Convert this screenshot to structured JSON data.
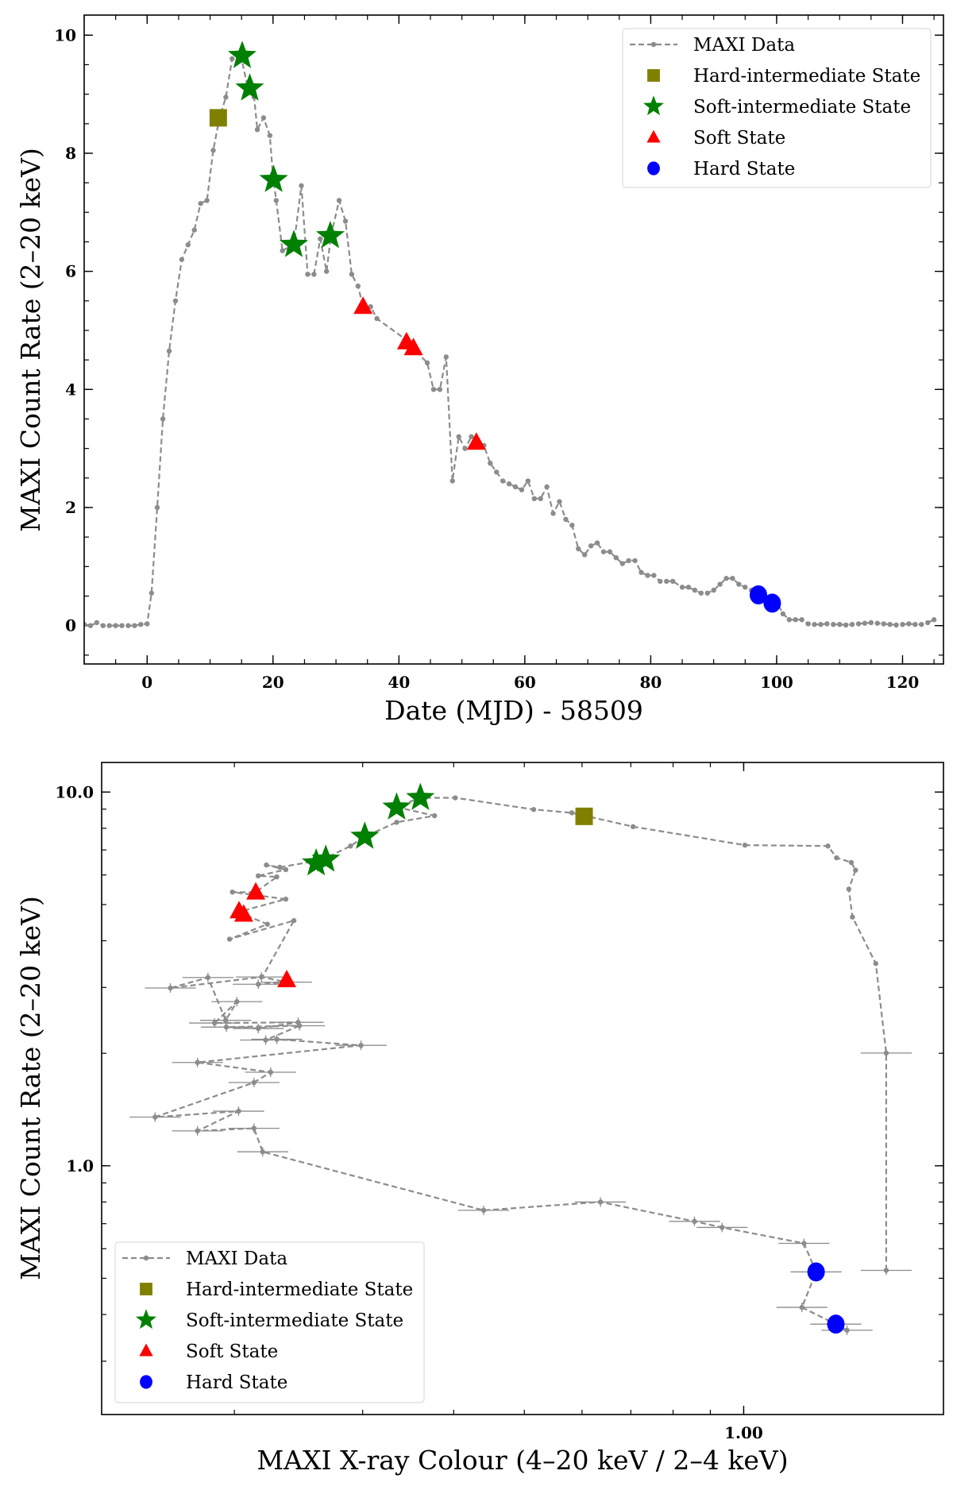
{
  "colors": {
    "data": "#8c8c8c",
    "hard_intermediate": "#808000",
    "soft_intermediate": "#008000",
    "soft": "#ff0000",
    "hard": "#0000ff"
  },
  "legend": [
    "MAXI Data",
    "Hard-intermediate State",
    "Soft-intermediate State",
    "Soft State",
    "Hard State"
  ],
  "chart_data": [
    {
      "type": "line",
      "title": "",
      "xlabel": "Date (MJD) - 58509",
      "ylabel": "MAXI Count Rate (2–20 keV)",
      "xlim": [
        -10,
        126.5
      ],
      "ylim": [
        -0.65,
        10.34
      ],
      "xticks": [
        0,
        20,
        40,
        60,
        80,
        100,
        120
      ],
      "xtick_labels": [
        "0",
        "20",
        "40",
        "60",
        "80",
        "100",
        "120"
      ],
      "yticks": [
        0,
        2,
        4,
        6,
        8,
        10
      ],
      "ytick_labels": [
        "0",
        "2",
        "4",
        "6",
        "8",
        "10"
      ],
      "grid": false,
      "legend_position": "top-right",
      "series": [
        {
          "name": "MAXI Data",
          "style": "dashed-dots",
          "points": [
            [
              -10,
              0.02
            ],
            [
              -9,
              0
            ],
            [
              -8,
              0.05
            ],
            [
              -7,
              0
            ],
            [
              -6,
              0
            ],
            [
              -5,
              0
            ],
            [
              -4,
              0
            ],
            [
              -3,
              0
            ],
            [
              -2,
              0
            ],
            [
              -1,
              0.02
            ],
            [
              0,
              0.03
            ],
            [
              0.7,
              0.55
            ],
            [
              1.6,
              2.0
            ],
            [
              2.5,
              3.5
            ],
            [
              3.5,
              4.65
            ],
            [
              4.5,
              5.5
            ],
            [
              5.5,
              6.2
            ],
            [
              6.5,
              6.45
            ],
            [
              7.5,
              6.7
            ],
            [
              8.5,
              7.15
            ],
            [
              9.5,
              7.2
            ],
            [
              10.5,
              8.05
            ],
            [
              11.5,
              8.6
            ],
            [
              12.5,
              8.95
            ],
            [
              13.5,
              9.6
            ],
            [
              15,
              9.6
            ],
            [
              16,
              9.1
            ],
            [
              17,
              8.95
            ],
            [
              17.5,
              8.4
            ],
            [
              18.5,
              8.6
            ],
            [
              19.5,
              8.3
            ],
            [
              20,
              7.6
            ],
            [
              20.5,
              7.2
            ],
            [
              21.5,
              6.35
            ],
            [
              23.3,
              6.45
            ],
            [
              24.5,
              7.45
            ],
            [
              25.5,
              5.95
            ],
            [
              26.5,
              5.95
            ],
            [
              27.5,
              6.55
            ],
            [
              28.5,
              6.0
            ],
            [
              29.2,
              6.6
            ],
            [
              30.5,
              7.2
            ],
            [
              31.5,
              6.85
            ],
            [
              32.5,
              5.95
            ],
            [
              33.5,
              5.75
            ],
            [
              34.3,
              5.4
            ],
            [
              35.5,
              5.4
            ],
            [
              36.5,
              5.2
            ],
            [
              41,
              4.85
            ],
            [
              42.3,
              4.7
            ],
            [
              44.5,
              4.45
            ],
            [
              45.5,
              4.0
            ],
            [
              46.5,
              4.0
            ],
            [
              47.5,
              4.55
            ],
            [
              48.5,
              2.45
            ],
            [
              49.5,
              3.2
            ],
            [
              50.5,
              3.0
            ],
            [
              51.5,
              3.2
            ],
            [
              52.3,
              3.15
            ],
            [
              53.5,
              3.05
            ],
            [
              54.5,
              2.75
            ],
            [
              55.5,
              2.6
            ],
            [
              56.5,
              2.45
            ],
            [
              57.5,
              2.4
            ],
            [
              58.5,
              2.35
            ],
            [
              59.5,
              2.3
            ],
            [
              60.5,
              2.45
            ],
            [
              61.5,
              2.15
            ],
            [
              62.5,
              2.15
            ],
            [
              63.5,
              2.35
            ],
            [
              64.5,
              1.9
            ],
            [
              65.5,
              2.1
            ],
            [
              66.5,
              1.8
            ],
            [
              67.5,
              1.7
            ],
            [
              68.5,
              1.3
            ],
            [
              69.5,
              1.2
            ],
            [
              70.5,
              1.35
            ],
            [
              71.5,
              1.4
            ],
            [
              72.5,
              1.25
            ],
            [
              73.5,
              1.25
            ],
            [
              74.5,
              1.15
            ],
            [
              75.5,
              1.05
            ],
            [
              76.5,
              1.1
            ],
            [
              77.5,
              1.1
            ],
            [
              78.5,
              0.9
            ],
            [
              79.5,
              0.85
            ],
            [
              80.5,
              0.85
            ],
            [
              81.5,
              0.75
            ],
            [
              82.5,
              0.75
            ],
            [
              83.5,
              0.75
            ],
            [
              85,
              0.65
            ],
            [
              86,
              0.65
            ],
            [
              87,
              0.6
            ],
            [
              88,
              0.55
            ],
            [
              89,
              0.55
            ],
            [
              90,
              0.6
            ],
            [
              91,
              0.7
            ],
            [
              92,
              0.8
            ],
            [
              93,
              0.8
            ],
            [
              94,
              0.7
            ],
            [
              95,
              0.65
            ],
            [
              96,
              0.6
            ],
            [
              97,
              0.55
            ],
            [
              98,
              0.5
            ],
            [
              99.2,
              0.4
            ],
            [
              100,
              0.4
            ],
            [
              101,
              0.2
            ],
            [
              102,
              0.1
            ],
            [
              103,
              0.1
            ],
            [
              104,
              0.1
            ],
            [
              105,
              0.03
            ],
            [
              106,
              0.02
            ],
            [
              107,
              0.02
            ],
            [
              108,
              0.03
            ],
            [
              109,
              0.02
            ],
            [
              110,
              0.02
            ],
            [
              111,
              0.01
            ],
            [
              112,
              0.02
            ],
            [
              113,
              0.03
            ],
            [
              114,
              0.04
            ],
            [
              115,
              0.05
            ],
            [
              116,
              0.04
            ],
            [
              117,
              0.03
            ],
            [
              118,
              0.02
            ],
            [
              119,
              0.01
            ],
            [
              120,
              0.02
            ],
            [
              121,
              0.03
            ],
            [
              122,
              0.02
            ],
            [
              123,
              0.02
            ],
            [
              124,
              0.05
            ],
            [
              125,
              0.1
            ]
          ]
        },
        {
          "name": "Hard-intermediate State",
          "marker": "square",
          "points": [
            [
              11.3,
              8.6
            ]
          ]
        },
        {
          "name": "Soft-intermediate State",
          "marker": "star",
          "points": [
            [
              15.1,
              9.65
            ],
            [
              16.3,
              9.1
            ],
            [
              20.1,
              7.55
            ],
            [
              23.3,
              6.45
            ],
            [
              29.1,
              6.6
            ]
          ]
        },
        {
          "name": "Soft State",
          "marker": "triangle",
          "points": [
            [
              34.3,
              5.4
            ],
            [
              41.2,
              4.8
            ],
            [
              42.3,
              4.7
            ],
            [
              52.3,
              3.1
            ]
          ]
        },
        {
          "name": "Hard State",
          "marker": "circle",
          "points": [
            [
              97.1,
              0.52
            ],
            [
              99.3,
              0.38
            ]
          ]
        }
      ]
    },
    {
      "type": "scatter",
      "title": "",
      "xlabel": "MAXI X-ray Colour (4–20 keV / 2–4 keV)",
      "ylabel": "MAXI Count Rate (2–20 keV)",
      "xscale": "log",
      "yscale": "log",
      "xlim": [
        0.1315,
        1.88
      ],
      "ylim": [
        0.216,
        12.0
      ],
      "xticks": [
        1.0
      ],
      "xtick_labels": [
        "1.00"
      ],
      "yticks": [
        1.0,
        10.0
      ],
      "ytick_labels": [
        "1.0",
        "10.0"
      ],
      "grid": false,
      "legend_position": "bottom-left",
      "xerr_dex_low_rate": 0.035,
      "series": [
        {
          "name": "MAXI Data",
          "style": "dashed-dots",
          "points": [
            [
              1.569,
              0.525
            ],
            [
              1.569,
              2.003
            ],
            [
              1.518,
              3.477
            ],
            [
              1.41,
              4.63
            ],
            [
              1.394,
              5.5
            ],
            [
              1.424,
              6.18
            ],
            [
              1.405,
              6.48
            ],
            [
              1.341,
              6.67
            ],
            [
              1.305,
              7.17
            ],
            [
              1.004,
              7.21
            ],
            [
              0.705,
              8.08
            ],
            [
              0.581,
              8.8
            ],
            [
              0.515,
              8.98
            ],
            [
              0.402,
              9.65
            ],
            [
              0.359,
              9.65
            ],
            [
              0.3345,
              9.11
            ],
            [
              0.3765,
              8.64
            ],
            [
              0.334,
              8.3
            ],
            [
              0.302,
              7.6
            ],
            [
              0.2887,
              7.17
            ],
            [
              0.2594,
              6.48
            ],
            [
              0.267,
              6.61
            ],
            [
              0.2309,
              6.29
            ],
            [
              0.2213,
              6.38
            ],
            [
              0.2353,
              6.2
            ],
            [
              0.2157,
              5.97
            ],
            [
              0.2287,
              5.93
            ],
            [
              0.2137,
              5.39
            ],
            [
              0.1988,
              5.4
            ],
            [
              0.2353,
              5.17
            ],
            [
              0.2035,
              4.79
            ],
            [
              0.2063,
              4.7
            ],
            [
              0.222,
              4.43
            ],
            [
              0.197,
              4.04
            ],
            [
              0.2414,
              4.53
            ],
            [
              0.2157,
              3.06
            ],
            [
              0.2358,
              3.1
            ],
            [
              0.2179,
              3.2
            ],
            [
              0.1634,
              2.99
            ],
            [
              0.184,
              3.19
            ],
            [
              0.1946,
              2.45
            ],
            [
              0.2016,
              2.75
            ],
            [
              0.1879,
              2.41
            ],
            [
              0.2447,
              2.42
            ],
            [
              0.2157,
              2.33
            ],
            [
              0.195,
              2.35
            ],
            [
              0.2457,
              2.37
            ],
            [
              0.2208,
              2.17
            ],
            [
              0.2287,
              2.18
            ],
            [
              0.2984,
              2.1
            ],
            [
              0.178,
              1.89
            ],
            [
              0.2243,
              1.78
            ],
            [
              0.2128,
              1.67
            ],
            [
              0.1557,
              1.35
            ],
            [
              0.2027,
              1.4
            ],
            [
              0.178,
              1.24
            ],
            [
              0.2128,
              1.26
            ],
            [
              0.2187,
              1.09
            ],
            [
              0.4397,
              0.76
            ],
            [
              0.636,
              0.8
            ],
            [
              0.856,
              0.71
            ],
            [
              0.934,
              0.684
            ],
            [
              1.21,
              0.62
            ],
            [
              1.257,
              0.52
            ],
            [
              1.202,
              0.418
            ],
            [
              1.338,
              0.377
            ],
            [
              1.386,
              0.363
            ]
          ]
        },
        {
          "name": "Hard-intermediate State",
          "marker": "square",
          "points": [
            [
              0.604,
              8.61
            ]
          ]
        },
        {
          "name": "Soft-intermediate State",
          "marker": "star",
          "points": [
            [
              0.36,
              9.65
            ],
            [
              0.334,
              9.1
            ],
            [
              0.302,
              7.6
            ],
            [
              0.267,
              6.6
            ],
            [
              0.259,
              6.45
            ]
          ]
        },
        {
          "name": "Soft State",
          "marker": "triangle",
          "points": [
            [
              0.214,
              5.39
            ],
            [
              0.203,
              4.8
            ],
            [
              0.206,
              4.7
            ],
            [
              0.236,
              3.14
            ]
          ]
        },
        {
          "name": "Hard State",
          "marker": "circle",
          "points": [
            [
              1.257,
              0.52
            ],
            [
              1.338,
              0.377
            ]
          ]
        }
      ]
    }
  ]
}
